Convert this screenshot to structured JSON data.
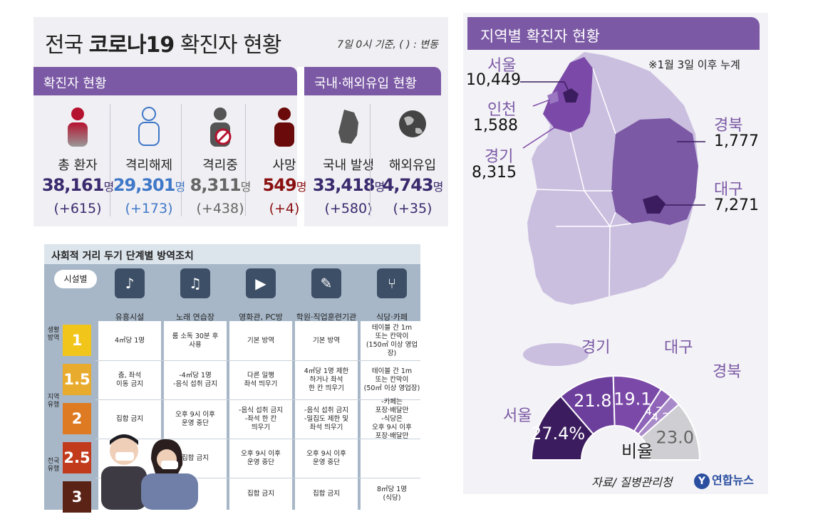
{
  "national": {
    "title_pre": "전국 ",
    "title_bold": "코로나19",
    "title_post": " 확진자 현황",
    "note": "7일 0시 기준, ( ) : 변동",
    "band_confirmed": "확진자 현황",
    "band_origin": "국내·해외유입 현황",
    "stats": [
      {
        "label": "총 환자",
        "value": "38,161",
        "unit": "명",
        "change": "(+615)",
        "color": "#3a2a6e",
        "icon": "person-icon"
      },
      {
        "label": "격리해제",
        "value": "29,301",
        "unit": "명",
        "change": "(+173)",
        "color": "#3f78c8",
        "icon": "person-outline-icon"
      },
      {
        "label": "격리중",
        "value": "8,311",
        "unit": "명",
        "change": "(+438)",
        "color": "#666666",
        "icon": "quarantine-icon"
      },
      {
        "label": "사망",
        "value": "549",
        "unit": "명",
        "change": "(+4)",
        "color": "#8a1010",
        "icon": "death-icon"
      },
      {
        "label": "국내 발생",
        "value": "33,418",
        "unit": "명",
        "change": "(+580)",
        "color": "#3a2a6e",
        "icon": "korea-map-icon"
      },
      {
        "label": "해외유입",
        "value": "4,743",
        "unit": "명",
        "change": "(+35)",
        "color": "#3a2a6e",
        "icon": "globe-icon"
      }
    ]
  },
  "regional": {
    "title": "지역별 확진자 현황",
    "note": "※1월 3일 이후 누계",
    "regions": [
      {
        "name": "서울",
        "value": "10,449"
      },
      {
        "name": "인천",
        "value": "1,588"
      },
      {
        "name": "경기",
        "value": "8,315"
      },
      {
        "name": "경북",
        "value": "1,777"
      },
      {
        "name": "대구",
        "value": "7,271"
      }
    ],
    "pie_center_label": "비율",
    "source": "자료/ 질병관리청",
    "brand": "연합뉴스",
    "brand_mark": "Y"
  },
  "chart_data": {
    "type": "pie",
    "title": "비율",
    "categories": [
      "서울",
      "경기",
      "대구",
      "경북",
      "",
      ""
    ],
    "values": [
      27.4,
      21.8,
      19.1,
      4.7,
      4.2,
      23.0
    ],
    "value_labels": [
      "27.4%",
      "21.8",
      "19.1",
      "4.7",
      "4.2",
      "23.0"
    ],
    "colors": [
      "#3b1c5e",
      "#6d3f9c",
      "#7b4aa8",
      "#8e63b8",
      "#a88ac8",
      "#cfcfd3"
    ]
  },
  "distancing": {
    "title": "사회적 거리 두기 단계별 방역조치",
    "by_facility": "시설별",
    "facilities": [
      {
        "label": "유흥시설",
        "icon": "dancing-icon",
        "glyph": "♪"
      },
      {
        "label": "노래 연습장",
        "icon": "microphone-icon",
        "glyph": "♫"
      },
      {
        "label": "영화관, PC방",
        "icon": "movie-camera-icon",
        "glyph": "▶"
      },
      {
        "label": "학원·직업훈련기관",
        "icon": "teacher-icon",
        "glyph": "✎"
      },
      {
        "label": "식당·카페",
        "icon": "cutlery-icon",
        "glyph": "⑂"
      }
    ],
    "groups": [
      "생활\n방역",
      "지역\n유행",
      "전국\n유행"
    ],
    "levels": [
      {
        "label": "1",
        "color": "#f1c51a"
      },
      {
        "label": "1.5",
        "color": "#e9ab2e"
      },
      {
        "label": "2",
        "color": "#de7a22"
      },
      {
        "label": "2.5",
        "color": "#c23a1c"
      },
      {
        "label": "3",
        "color": "#5a2316"
      }
    ],
    "cells": [
      [
        "4㎡당 1명",
        "룸 소독 30분 후\n사용",
        "기본 방역",
        "기본 방역",
        "테이블 간 1m\n또는 칸막이\n(150㎡ 이상 영업장)"
      ],
      [
        "춤, 좌석\n이동 금지",
        "-4㎡당 1명\n-음식 섭취 금지",
        "다른 일행\n좌석 띄우기",
        "4㎡당 1명 제한\n하거나 좌석\n한 칸 띄우기",
        "테이블 간 1m\n또는 칸막이\n(50㎡ 이상 영업장)"
      ],
      [
        "집합 금지",
        "오후 9시 이후\n운영 중단",
        "-음식 섭취 금지\n-좌석 한 칸\n띄우기",
        "-음식 섭취 금지\n-밀집도 제한 및\n좌석 띄우기",
        "-카페는\n포장·배달만\n-식당은\n오후 9시 이후\n포장·배달만"
      ],
      [
        "",
        "집합 금지",
        "오후 9시 이후\n운영 중단",
        "오후 9시 이후\n운영 중단",
        ""
      ],
      [
        "",
        "",
        "집합 금지",
        "집합 금지",
        "8㎡당 1명\n(식당)"
      ]
    ]
  }
}
